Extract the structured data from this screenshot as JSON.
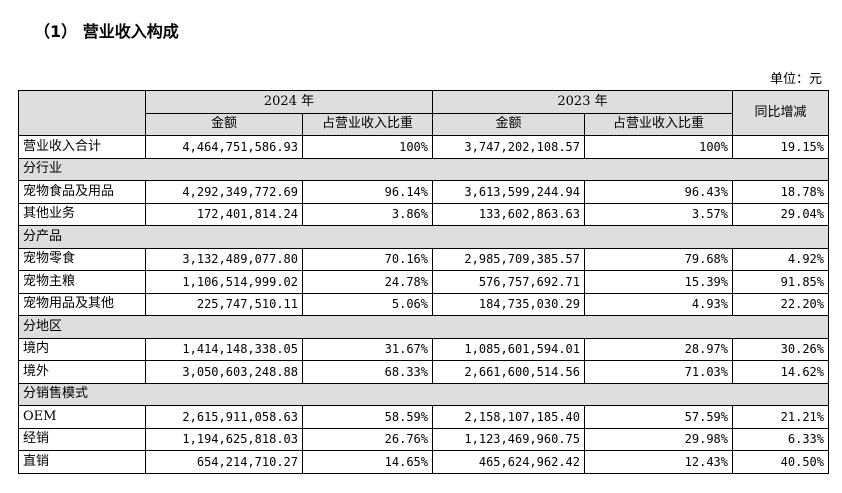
{
  "title": "（1） 营业收入构成",
  "unit": "单位：元",
  "header": {
    "year_2024": "2024 年",
    "year_2023": "2023 年",
    "amount": "金额",
    "ratio": "占营业收入比重",
    "yoy": "同比增减"
  },
  "total": {
    "label": "营业收入合计",
    "amt24": "4,464,751,586.93",
    "pct24": "100%",
    "amt23": "3,747,202,108.57",
    "pct23": "100%",
    "yoy": "19.15%"
  },
  "sections": [
    {
      "title": "分行业",
      "rows": [
        {
          "label": "宠物食品及用品",
          "amt24": "4,292,349,772.69",
          "pct24": "96.14%",
          "amt23": "3,613,599,244.94",
          "pct23": "96.43%",
          "yoy": "18.78%"
        },
        {
          "label": "其他业务",
          "amt24": "172,401,814.24",
          "pct24": "3.86%",
          "amt23": "133,602,863.63",
          "pct23": "3.57%",
          "yoy": "29.04%"
        }
      ]
    },
    {
      "title": "分产品",
      "rows": [
        {
          "label": "宠物零食",
          "amt24": "3,132,489,077.80",
          "pct24": "70.16%",
          "amt23": "2,985,709,385.57",
          "pct23": "79.68%",
          "yoy": "4.92%"
        },
        {
          "label": "宠物主粮",
          "amt24": "1,106,514,999.02",
          "pct24": "24.78%",
          "amt23": "576,757,692.71",
          "pct23": "15.39%",
          "yoy": "91.85%"
        },
        {
          "label": "宠物用品及其他",
          "amt24": "225,747,510.11",
          "pct24": "5.06%",
          "amt23": "184,735,030.29",
          "pct23": "4.93%",
          "yoy": "22.20%"
        }
      ]
    },
    {
      "title": "分地区",
      "rows": [
        {
          "label": "境内",
          "amt24": "1,414,148,338.05",
          "pct24": "31.67%",
          "amt23": "1,085,601,594.01",
          "pct23": "28.97%",
          "yoy": "30.26%"
        },
        {
          "label": "境外",
          "amt24": "3,050,603,248.88",
          "pct24": "68.33%",
          "amt23": "2,661,600,514.56",
          "pct23": "71.03%",
          "yoy": "14.62%"
        }
      ]
    },
    {
      "title": "分销售模式",
      "rows": [
        {
          "label": "OEM",
          "amt24": "2,615,911,058.63",
          "pct24": "58.59%",
          "amt23": "2,158,107,185.40",
          "pct23": "57.59%",
          "yoy": "21.21%"
        },
        {
          "label": "经销",
          "amt24": "1,194,625,818.03",
          "pct24": "26.76%",
          "amt23": "1,123,469,960.75",
          "pct23": "29.98%",
          "yoy": "6.33%"
        },
        {
          "label": "直销",
          "amt24": "654,214,710.27",
          "pct24": "14.65%",
          "amt23": "465,624,962.42",
          "pct23": "12.43%",
          "yoy": "40.50%"
        }
      ]
    }
  ]
}
